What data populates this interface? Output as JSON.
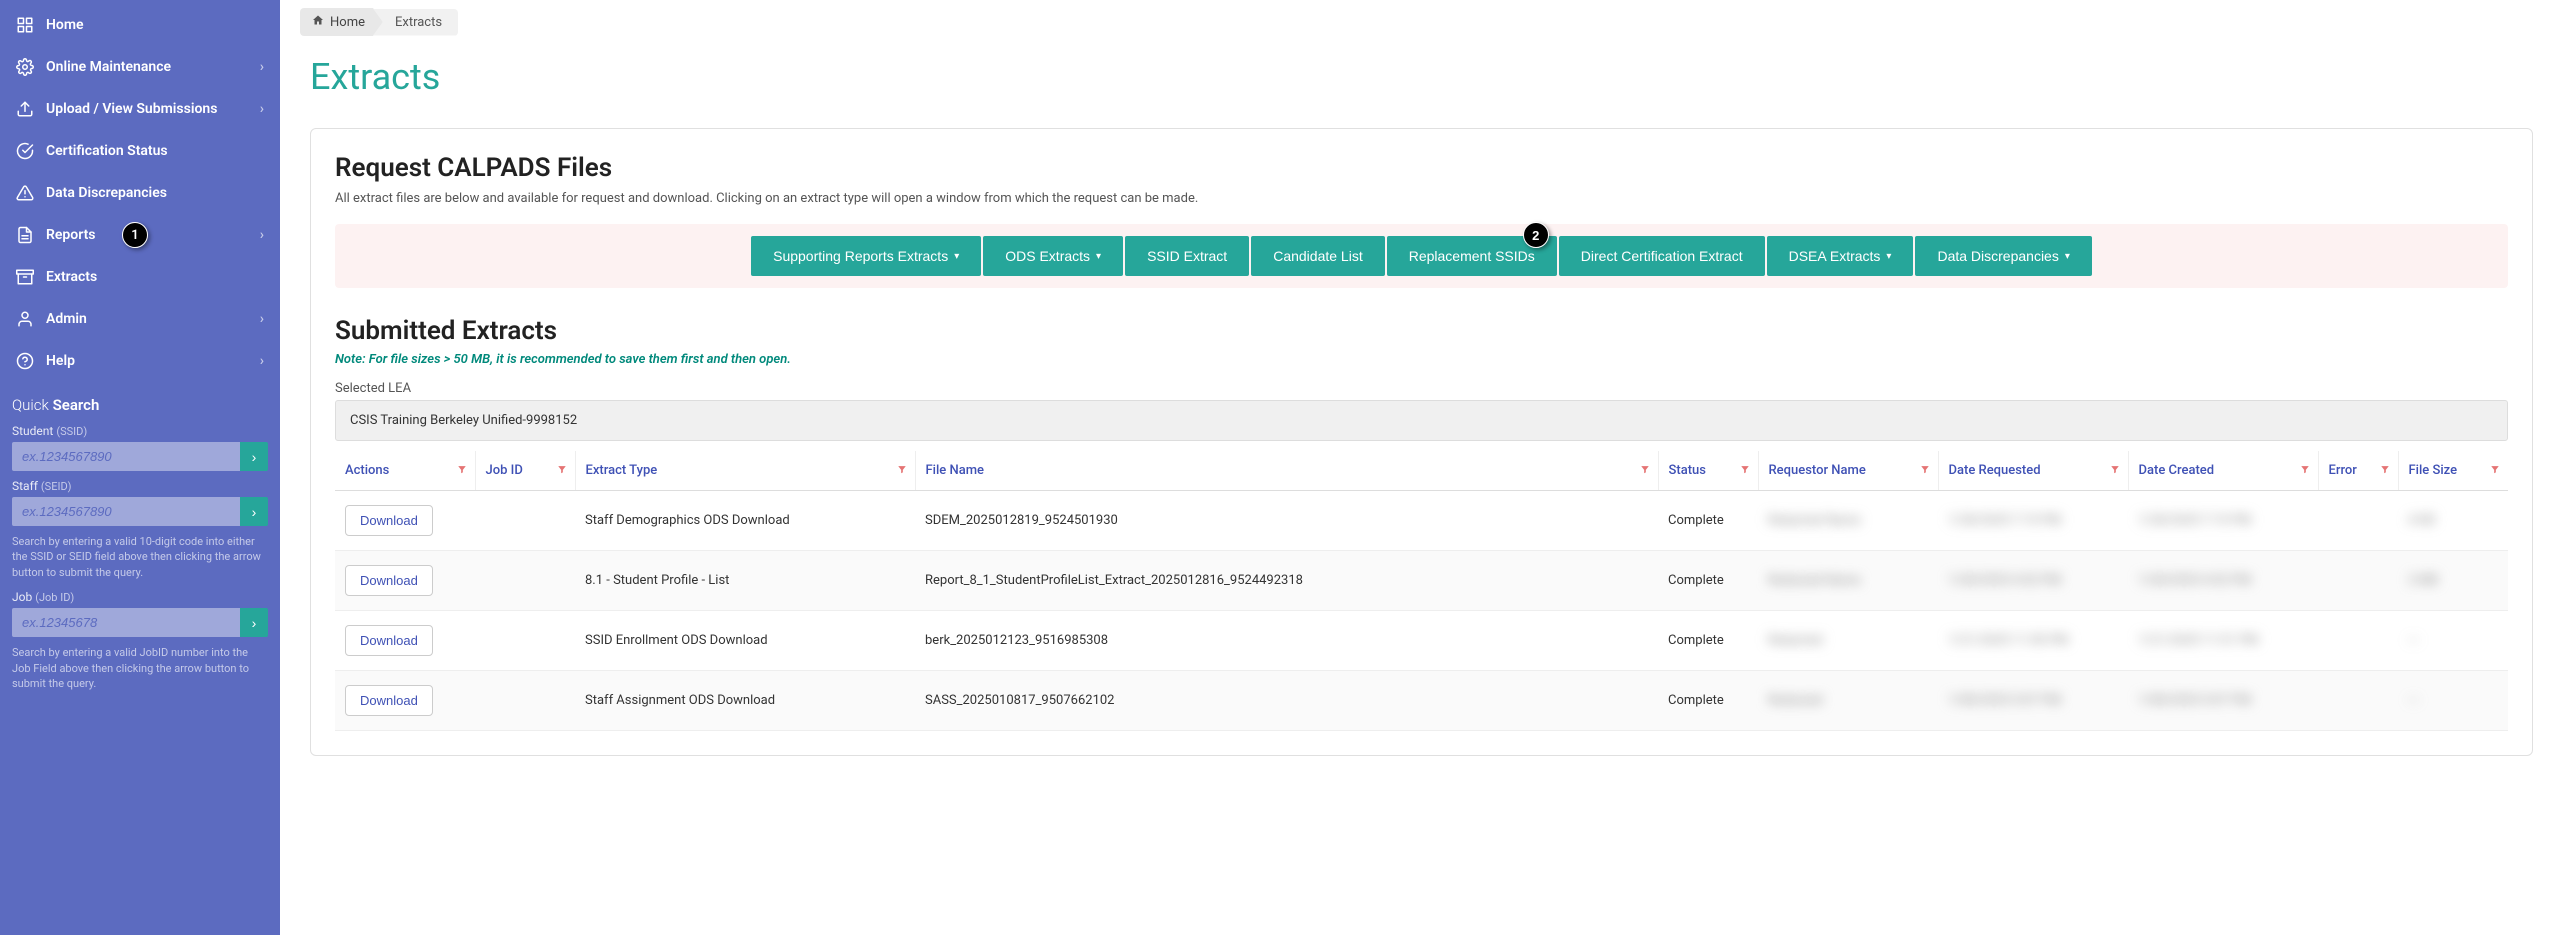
{
  "sidebar": {
    "items": [
      {
        "label": "Home",
        "icon": "grid",
        "chevron": false
      },
      {
        "label": "Online Maintenance",
        "icon": "gear",
        "chevron": true
      },
      {
        "label": "Upload / View Submissions",
        "icon": "upload",
        "chevron": true
      },
      {
        "label": "Certification Status",
        "icon": "check-circle",
        "chevron": false
      },
      {
        "label": "Data Discrepancies",
        "icon": "alert",
        "chevron": false
      },
      {
        "label": "Reports",
        "icon": "doc",
        "chevron": true,
        "badge": "1"
      },
      {
        "label": "Extracts",
        "icon": "stack",
        "chevron": false
      },
      {
        "label": "Admin",
        "icon": "user",
        "chevron": true
      },
      {
        "label": "Help",
        "icon": "help",
        "chevron": true
      }
    ],
    "quick_search": {
      "title_light": "Quick",
      "title_bold": "Search",
      "student_label": "Student",
      "student_sub": "(SSID)",
      "student_placeholder": "ex.1234567890",
      "staff_label": "Staff",
      "staff_sub": "(SEID)",
      "staff_placeholder": "ex.1234567890",
      "hint1": "Search by entering a valid 10-digit code into either the SSID or SEID field above then clicking the arrow button to submit the query.",
      "job_label": "Job",
      "job_sub": "(Job ID)",
      "job_placeholder": "ex.12345678",
      "hint2": "Search by entering a valid JobID number into the Job Field above then clicking the arrow button to submit the query."
    }
  },
  "breadcrumb": {
    "home": "Home",
    "current": "Extracts"
  },
  "page_title": "Extracts",
  "request_section": {
    "title": "Request CALPADS Files",
    "desc": "All extract files are below and available for request and download. Clicking on an extract type will open a window from which the request can be made.",
    "buttons": [
      {
        "label": "Supporting Reports Extracts",
        "dropdown": true
      },
      {
        "label": "ODS Extracts",
        "dropdown": true
      },
      {
        "label": "SSID Extract",
        "dropdown": false
      },
      {
        "label": "Candidate List",
        "dropdown": false
      },
      {
        "label": "Replacement SSIDs",
        "dropdown": false,
        "badge": "2"
      },
      {
        "label": "Direct Certification Extract",
        "dropdown": false
      },
      {
        "label": "DSEA Extracts",
        "dropdown": true
      },
      {
        "label": "Data Discrepancies",
        "dropdown": true
      }
    ]
  },
  "submitted_section": {
    "title": "Submitted Extracts",
    "note": "Note: For file sizes > 50 MB, it is recommended to save them first and then open.",
    "selected_lea_label": "Selected LEA",
    "selected_lea_value": "CSIS Training Berkeley Unified-9998152"
  },
  "table": {
    "columns": [
      "Actions",
      "Job ID",
      "Extract Type",
      "File Name",
      "Status",
      "Requestor Name",
      "Date Requested",
      "Date Created",
      "Error",
      "File Size"
    ],
    "download_label": "Download",
    "rows": [
      {
        "extract_type": "Staff Demographics ODS Download",
        "file_name": "SDEM_2025012819_9524501930",
        "status": "Complete",
        "requestor": "Redacted Name",
        "date_req": "1/28/2025 7:19 PM",
        "date_created": "1/28/2025 7:19 PM",
        "error": "",
        "file_size": "4 KB"
      },
      {
        "extract_type": "8.1 - Student Profile - List",
        "file_name": "Report_8_1_StudentProfileList_Extract_2025012816_9524492318",
        "status": "Complete",
        "requestor": "Redacted Name",
        "date_req": "1/28/2025 4:52 PM",
        "date_created": "1/28/2025 4:52 PM",
        "error": "",
        "file_size": "2 MB"
      },
      {
        "extract_type": "SSID Enrollment ODS Download",
        "file_name": "berk_2025012123_9516985308",
        "status": "Complete",
        "requestor": "Redacted",
        "date_req": "1/21/2025 11:50 PM",
        "date_created": "1/21/2025 11:51 PM",
        "error": "",
        "file_size": "---"
      },
      {
        "extract_type": "Staff Assignment ODS Download",
        "file_name": "SASS_2025010817_9507662102",
        "status": "Complete",
        "requestor": "Redacted",
        "date_req": "1/08/2025 5:07 PM",
        "date_created": "1/08/2025 5:07 PM",
        "error": "",
        "file_size": "---"
      }
    ]
  },
  "colors": {
    "sidebar_bg": "#5c6bc0",
    "accent": "#26a69a",
    "title": "#26a69a",
    "link": "#3f51b5",
    "filter": "#e57373"
  }
}
